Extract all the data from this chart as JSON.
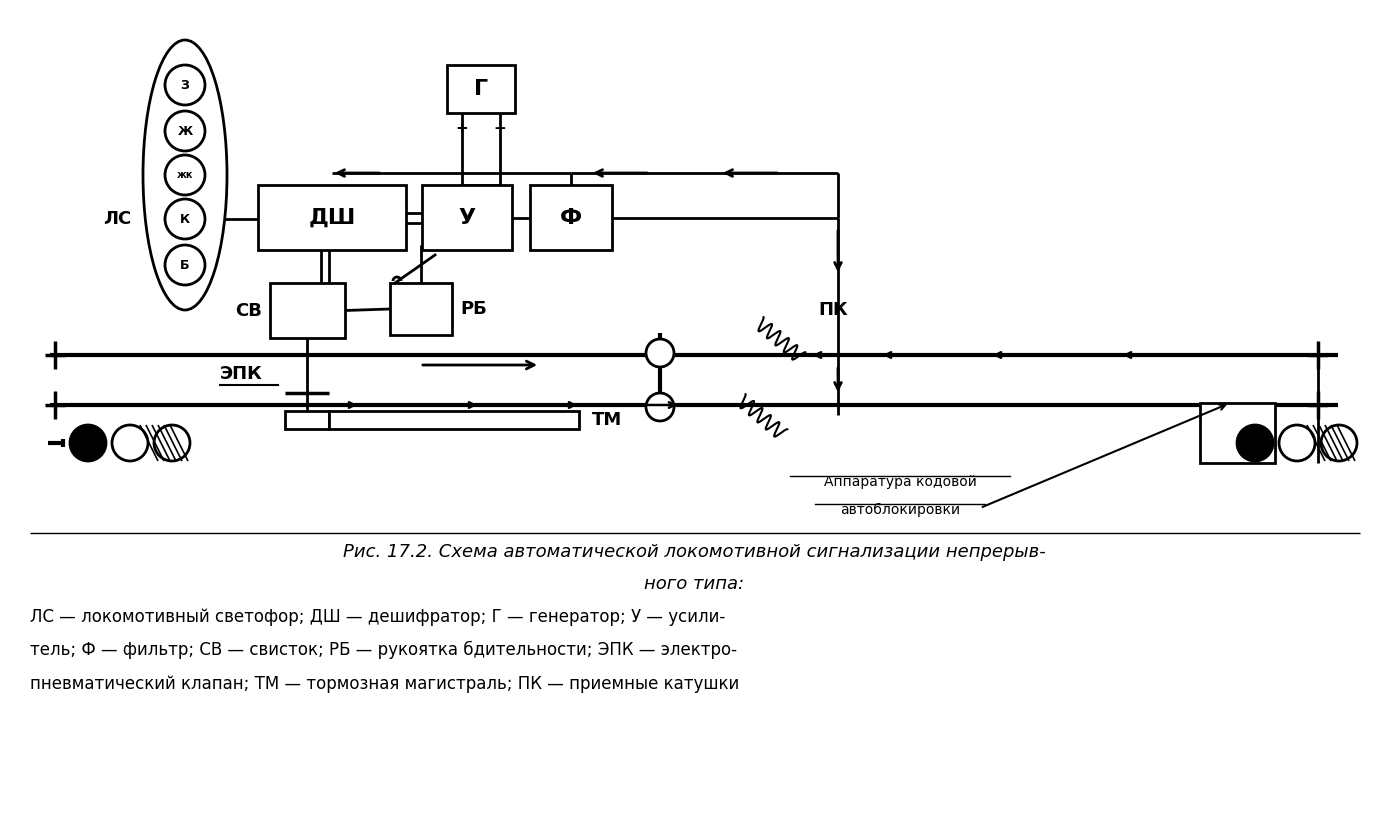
{
  "bg_color": "#ffffff",
  "lc": "#000000",
  "fig_w": 13.88,
  "fig_h": 8.33,
  "caption_line1": "Рис. 17.2. Схема автоматической локомотивной сигнализации непрерыв-",
  "caption_line2": "ного типа:",
  "caption_body1": "ЛС — локомотивный светофор; ДШ — дешифратор; Г — генератор; У — усили-",
  "caption_body2": "тель; Ф — фильтр; СВ — свисток; РБ — рукоятка бдительности; ЭПК — электро-",
  "caption_body3": "пневматический клапан; ТМ — тормозная магистраль; ПК — приемные катушки",
  "ann_line1": "Аппаратура кодовой",
  "ann_line2": "автоблокировки"
}
